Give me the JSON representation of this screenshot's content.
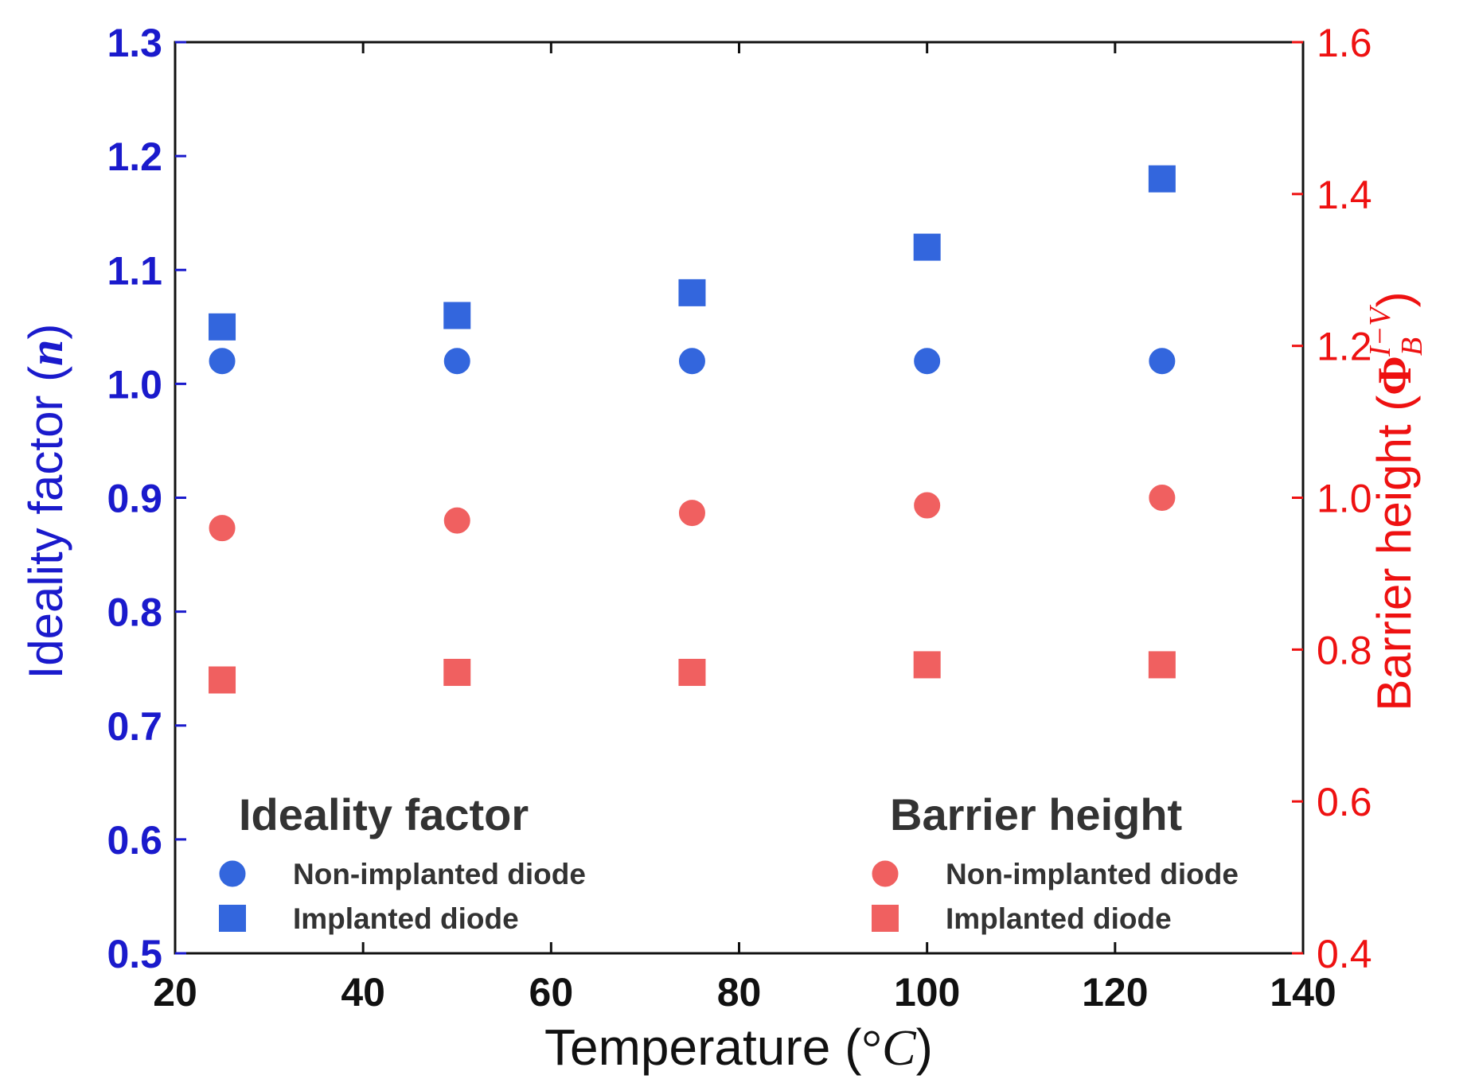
{
  "colors": {
    "left_axis": "#1a1acc",
    "right_axis": "#ee1111",
    "blue_marker": "#3366dd",
    "red_marker": "#f06060",
    "legend_text": "#333333",
    "x_axis": "#111111"
  },
  "chart_data": {
    "type": "scatter",
    "x": [
      25,
      50,
      75,
      100,
      125
    ],
    "xlim": [
      20,
      140
    ],
    "xticks": [
      "20",
      "40",
      "60",
      "80",
      "100",
      "120",
      "140"
    ],
    "xlabel": {
      "prefix": "Temperature (",
      "unit_degree": "°",
      "unit_c": "C",
      "suffix": ")"
    },
    "ylim_left": [
      0.5,
      1.3
    ],
    "yticks_left": [
      "0.5",
      "0.6",
      "0.7",
      "0.8",
      "0.9",
      "1.0",
      "1.1",
      "1.2",
      "1.3"
    ],
    "ylabel_left": {
      "prefix": "Ideality factor (",
      "symbol": "n",
      "suffix": ")"
    },
    "ylim_right": [
      0.4,
      1.6
    ],
    "yticks_right": [
      "0.4",
      "0.6",
      "0.8",
      "1.0",
      "1.2",
      "1.4",
      "1.6"
    ],
    "ylabel_right": {
      "prefix": "Barrier height (",
      "symbol": "Φ",
      "subscript": "B",
      "superscript": "I−V",
      "suffix": ")"
    },
    "series": [
      {
        "name": "Non-implanted diode",
        "group": "Ideality factor",
        "axis": "left",
        "marker": "circle",
        "color": "#3366dd",
        "values": [
          1.02,
          1.02,
          1.02,
          1.02,
          1.02
        ]
      },
      {
        "name": "Implanted diode",
        "group": "Ideality factor",
        "axis": "left",
        "marker": "square",
        "color": "#3366dd",
        "values": [
          1.05,
          1.06,
          1.08,
          1.12,
          1.18
        ]
      },
      {
        "name": "Non-implanted diode",
        "group": "Barrier height",
        "axis": "right",
        "marker": "circle",
        "color": "#f06060",
        "values": [
          0.96,
          0.97,
          0.98,
          0.99,
          1.0
        ]
      },
      {
        "name": "Implanted diode",
        "group": "Barrier height",
        "axis": "right",
        "marker": "square",
        "color": "#f06060",
        "values": [
          0.76,
          0.77,
          0.77,
          0.78,
          0.78
        ]
      }
    ],
    "legends": [
      {
        "title": "Ideality factor",
        "placement": "bottom-left",
        "entries": [
          {
            "label": "Non-implanted diode",
            "marker": "circle",
            "color": "#3366dd"
          },
          {
            "label": "Implanted diode",
            "marker": "square",
            "color": "#3366dd"
          }
        ]
      },
      {
        "title": "Barrier height",
        "placement": "bottom-right",
        "entries": [
          {
            "label": "Non-implanted diode",
            "marker": "circle",
            "color": "#f06060"
          },
          {
            "label": "Implanted diode",
            "marker": "square",
            "color": "#f06060"
          }
        ]
      }
    ]
  }
}
